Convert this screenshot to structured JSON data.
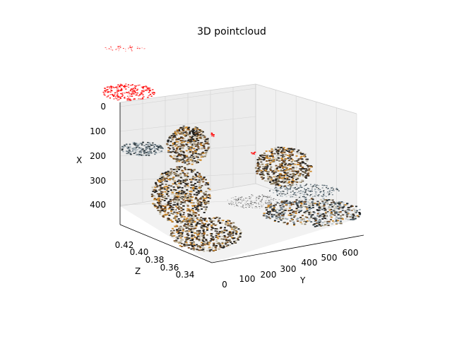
{
  "chart_data": {
    "type": "scatter",
    "projection": "3d",
    "title": "3D pointcloud",
    "axes": {
      "x": {
        "label": "X",
        "ticks": [
          "0",
          "100",
          "200",
          "300",
          "400"
        ]
      },
      "y": {
        "label": "Y",
        "ticks": [
          "0",
          "100",
          "200",
          "300",
          "400",
          "500",
          "600"
        ]
      },
      "z": {
        "label": "Z",
        "ticks": [
          "0.42",
          "0.40",
          "0.38",
          "0.36",
          "0.34"
        ]
      }
    },
    "grid": true,
    "colors": {
      "pane_left": "#e9e9e9",
      "pane_back": "#ececec",
      "pane_floor": "#f2f2f2",
      "grid": "#d4d4d4",
      "marker_red": "#ff0000",
      "rock_dark": "#2a2520",
      "rock_brown": "#7a4a1c",
      "rock_orange": "#d08a2a",
      "rock_slate": "#4a5a64"
    }
  }
}
